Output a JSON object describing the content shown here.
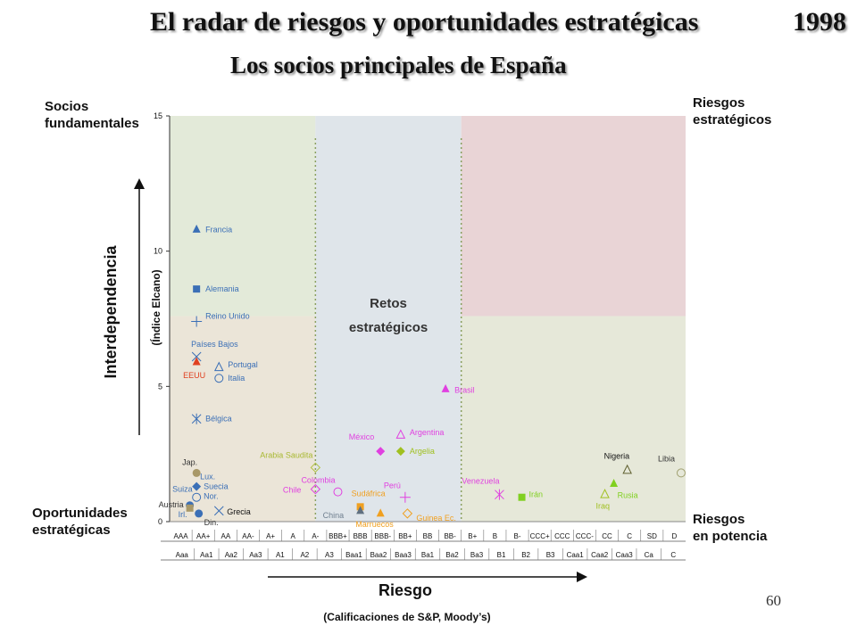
{
  "title": "El radar de riesgos y oportunidades estratégicas",
  "year": "1998",
  "subtitle": "Los socios principales de España",
  "page_number": "60",
  "corner_labels": {
    "top_left": [
      "Socios",
      "fundamentales"
    ],
    "top_right": [
      "Riesgos",
      "estratégicos"
    ],
    "bottom_left": [
      "Oportunidades",
      "estratégicas"
    ],
    "bottom_right": [
      "Riesgos",
      "en potencia"
    ],
    "center": [
      "Retos",
      "estratégicos"
    ]
  },
  "colors": {
    "zone_green": "#e3ead9",
    "zone_tan": "#ebe5d8",
    "zone_blue": "#dfe5ea",
    "zone_pink": "#e9d4d6",
    "zone_olive": "#e6e8d9"
  },
  "chart_data": {
    "type": "scatter",
    "ylabel": "Interdependencia",
    "ylabel_sub": "(Índice Elcano)",
    "xlabel": "Riesgo",
    "xlabel_sub": "(Calificaciones de S&P, Moody’s)",
    "ylim": [
      0,
      15
    ],
    "yticks": [
      0,
      5,
      10,
      15
    ],
    "x_categories_sp": [
      "AAA",
      "AA+",
      "AA",
      "AA-",
      "A+",
      "A",
      "A-",
      "BBB+",
      "BBB",
      "BBB-",
      "BB+",
      "BB",
      "BB-",
      "B+",
      "B",
      "B-",
      "CCC+",
      "CCC",
      "CCC-",
      "CC",
      "C",
      "SD",
      "D"
    ],
    "x_categories_moodys": [
      "Aaa",
      "Aa1",
      "Aa2",
      "Aa3",
      "A1",
      "A2",
      "A3",
      "Baa1",
      "Baa2",
      "Baa3",
      "Ba1",
      "Ba2",
      "Ba3",
      "B1",
      "B2",
      "B3",
      "Caa1",
      "Caa2",
      "Caa3",
      "Ca",
      "C"
    ],
    "series": [
      {
        "label": "Francia",
        "x": 0.7,
        "y": 10.8,
        "marker": "triangle",
        "color": "#3b6fb6",
        "text_color": "#3b6fb6"
      },
      {
        "label": "Alemania",
        "x": 0.7,
        "y": 8.6,
        "marker": "square",
        "color": "#3b6fb6",
        "text_color": "#3b6fb6"
      },
      {
        "label": "Reino Unido",
        "x": 0.7,
        "y": 7.4,
        "marker": "plus",
        "color": "#3b6fb6",
        "text_color": "#3b6fb6"
      },
      {
        "label": "Países Bajos",
        "x": 0.7,
        "y": 6.1,
        "marker": "x",
        "color": "#3b6fb6",
        "text_color": "#3b6fb6"
      },
      {
        "label": "EEUU",
        "x": 0.7,
        "y": 5.9,
        "marker": "triangle",
        "color": "#e04020",
        "text_color": "#e04020"
      },
      {
        "label": "Portugal",
        "x": 1.7,
        "y": 5.7,
        "marker": "triangle-open",
        "color": "#3b6fb6",
        "text_color": "#3b6fb6"
      },
      {
        "label": "Italia",
        "x": 1.7,
        "y": 5.3,
        "marker": "circle-open",
        "color": "#3b6fb6",
        "text_color": "#3b6fb6"
      },
      {
        "label": "Bélgica",
        "x": 0.7,
        "y": 3.8,
        "marker": "asterisk",
        "color": "#3b6fb6",
        "text_color": "#3b6fb6"
      },
      {
        "label": "Jap.",
        "x": 0.7,
        "y": 1.8,
        "marker": "circle",
        "color": "#a89868",
        "text_color": "#333333"
      },
      {
        "label": "Lux.",
        "x": 0.7,
        "y": 1.6,
        "marker": "none",
        "color": "#3b6fb6",
        "text_color": "#3b6fb6"
      },
      {
        "label": "Suecia",
        "x": 0.7,
        "y": 1.3,
        "marker": "diamond",
        "color": "#3b6fb6",
        "text_color": "#3b6fb6"
      },
      {
        "label": "Suiza",
        "x": 0.3,
        "y": 1.1,
        "marker": "none",
        "color": "#3b6fb6",
        "text_color": "#3b6fb6"
      },
      {
        "label": "Nor.",
        "x": 0.7,
        "y": 0.9,
        "marker": "circle-open",
        "color": "#3b6fb6",
        "text_color": "#3b6fb6"
      },
      {
        "label": "Irl.",
        "x": 0.4,
        "y": 0.6,
        "marker": "circle",
        "color": "#3b6fb6",
        "text_color": "#3b6fb6"
      },
      {
        "label": "Austria",
        "x": 0.4,
        "y": 0.5,
        "marker": "square",
        "color": "#a89868",
        "text_color": "#333333"
      },
      {
        "label": "Din.",
        "x": 0.8,
        "y": 0.3,
        "marker": "circle",
        "color": "#3b6fb6",
        "text_color": "#333333"
      },
      {
        "label": "Grecia",
        "x": 1.7,
        "y": 0.4,
        "marker": "x",
        "color": "#3b6fb6",
        "text_color": "#111111"
      },
      {
        "label": "Arabia Saudita",
        "x": 6.0,
        "y": 2.0,
        "marker": "diamond-open",
        "color": "#b0c040",
        "text_color": "#a8b830"
      },
      {
        "label": "Chile",
        "x": 6.0,
        "y": 1.2,
        "marker": "diamond-open",
        "color": "#e040e0",
        "text_color": "#e040e0"
      },
      {
        "label": "Colombia",
        "x": 7.0,
        "y": 1.1,
        "marker": "circle-open",
        "color": "#e040e0",
        "text_color": "#e040e0"
      },
      {
        "label": "Sudáfrica",
        "x": 8.0,
        "y": 0.55,
        "marker": "square",
        "color": "#f0a020",
        "text_color": "#f0a020"
      },
      {
        "label": "China",
        "x": 8.0,
        "y": 0.4,
        "marker": "triangle",
        "color": "#607080",
        "text_color": "#708090"
      },
      {
        "label": "Marruecos",
        "x": 8.9,
        "y": 0.3,
        "marker": "triangle",
        "color": "#f0a020",
        "text_color": "#f0a020"
      },
      {
        "label": "Guinea Ec.",
        "x": 10.1,
        "y": 0.3,
        "marker": "diamond-open",
        "color": "#f0a020",
        "text_color": "#f0a020"
      },
      {
        "label": "México",
        "x": 8.9,
        "y": 2.6,
        "marker": "diamond",
        "color": "#e040e0",
        "text_color": "#e040e0"
      },
      {
        "label": "Argentina",
        "x": 9.8,
        "y": 3.2,
        "marker": "triangle-open",
        "color": "#e040e0",
        "text_color": "#e040e0"
      },
      {
        "label": "Argelia",
        "x": 9.8,
        "y": 2.6,
        "marker": "diamond",
        "color": "#a0c020",
        "text_color": "#a0c020"
      },
      {
        "label": "Perú",
        "x": 10.0,
        "y": 0.9,
        "marker": "plus",
        "color": "#e040e0",
        "text_color": "#e040e0"
      },
      {
        "label": "Brasil",
        "x": 11.8,
        "y": 4.9,
        "marker": "triangle",
        "color": "#e040e0",
        "text_color": "#e040e0"
      },
      {
        "label": "Venezuela",
        "x": 14.2,
        "y": 1.0,
        "marker": "asterisk",
        "color": "#e040e0",
        "text_color": "#e040e0"
      },
      {
        "label": "Irán",
        "x": 15.2,
        "y": 0.9,
        "marker": "square",
        "color": "#80d020",
        "text_color": "#80d020"
      },
      {
        "label": "Iraq",
        "x": 18.9,
        "y": 1.0,
        "marker": "triangle-open",
        "color": "#a0c020",
        "text_color": "#a0c020"
      },
      {
        "label": "Rusia",
        "x": 19.3,
        "y": 1.4,
        "marker": "triangle",
        "color": "#80d020",
        "text_color": "#80d020"
      },
      {
        "label": "Nigeria",
        "x": 19.9,
        "y": 1.9,
        "marker": "triangle-open",
        "color": "#606030",
        "text_color": "#111111"
      },
      {
        "label": "Libia",
        "x": 22.3,
        "y": 1.8,
        "marker": "circle-open",
        "color": "#a0a070",
        "text_color": "#333333"
      }
    ]
  }
}
